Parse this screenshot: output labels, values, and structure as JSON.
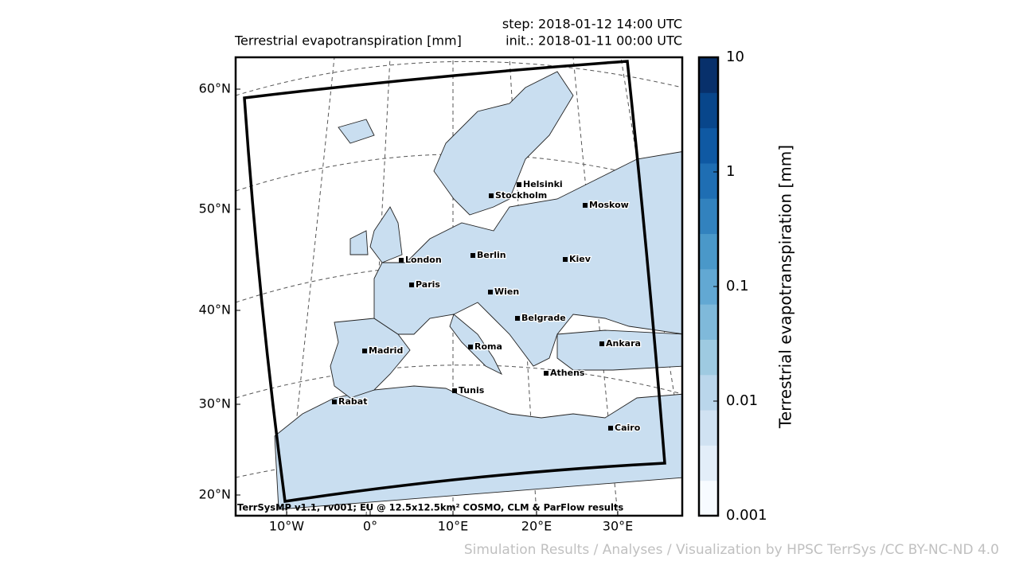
{
  "header": {
    "title": "Terrestrial evapotranspiration [mm]",
    "step": "step: 2018-01-12 14:00 UTC",
    "init": "init.: 2018-01-11 00:00 UTC"
  },
  "map": {
    "lat_labels": [
      "60°N",
      "50°N",
      "40°N",
      "30°N",
      "20°N"
    ],
    "lon_labels": [
      "10°W",
      "0°",
      "10°E",
      "20°E",
      "30°E"
    ],
    "cities": [
      "Helsinki",
      "Stockholm",
      "Moskow",
      "London",
      "Berlin",
      "Kiev",
      "Paris",
      "Wien",
      "Belgrade",
      "Madrid",
      "Roma",
      "Ankara",
      "Athens",
      "Tunis",
      "Rabat",
      "Cairo"
    ],
    "footer": "TerrSysMP v1.1, rv001; EU @ 12.5x12.5km² COSMO, CLM & ParFlow results"
  },
  "colorbar": {
    "label": "Terrestrial evapotranspiration [mm]",
    "scale": "log",
    "lim": [
      0.001,
      10
    ],
    "ticks": [
      0.001,
      0.01,
      0.1,
      1,
      10
    ],
    "colors": [
      "#f7fbff",
      "#e3eef9",
      "#d0e2f2",
      "#bad6eb",
      "#9ecae1",
      "#7fb9da",
      "#62a8d3",
      "#4a98c9",
      "#3282be",
      "#1f6eb3",
      "#0f59a3",
      "#08468b",
      "#08306b"
    ]
  },
  "attribution": "Simulation Results / Analyses / Visualization by HPSC TerrSys /CC BY-NC-ND 4.0"
}
